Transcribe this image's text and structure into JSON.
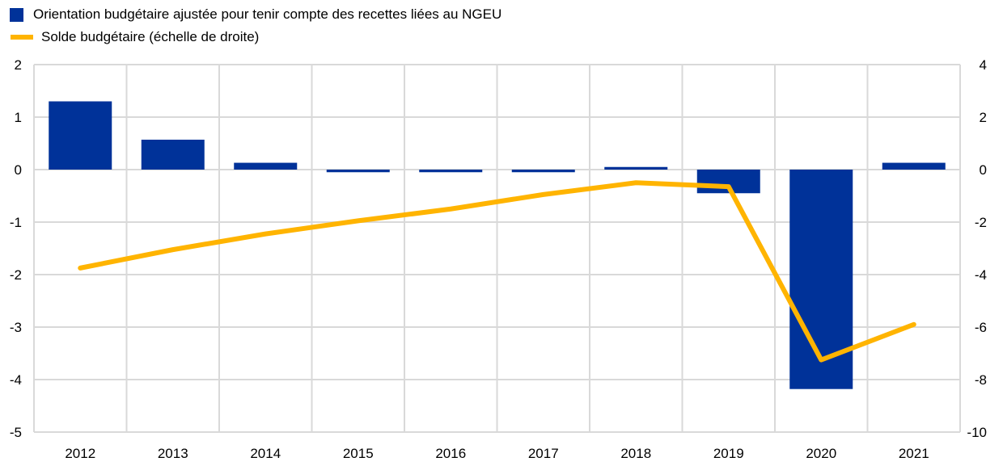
{
  "chart_data": {
    "type": "bar+line",
    "categories": [
      "2012",
      "2013",
      "2014",
      "2015",
      "2016",
      "2017",
      "2018",
      "2019",
      "2020",
      "2021"
    ],
    "series": [
      {
        "name": "Orientation budgétaire ajustée pour tenir compte des recettes liées au NGEU",
        "type": "bar",
        "axis": "left",
        "color": "#003299",
        "values": [
          1.3,
          0.57,
          0.13,
          -0.05,
          -0.05,
          -0.05,
          0.05,
          -0.45,
          -4.18,
          0.13
        ]
      },
      {
        "name": "Solde budgétaire  (échelle de droite)",
        "type": "line",
        "axis": "right",
        "color": "#FFB400",
        "values": [
          -3.75,
          -3.05,
          -2.45,
          -1.95,
          -1.5,
          -0.95,
          -0.5,
          -0.65,
          -7.25,
          -5.9
        ]
      }
    ],
    "left_axis": {
      "ylim": [
        -5,
        2
      ],
      "ticks": [
        "2",
        "1",
        "0",
        "-1",
        "-2",
        "-3",
        "-4",
        "-5"
      ]
    },
    "right_axis": {
      "ylim": [
        -10,
        4
      ],
      "ticks": [
        "4",
        "2",
        "0",
        "-2",
        "-4",
        "-6",
        "-8",
        "-10"
      ]
    },
    "grid": true,
    "legend_position": "top-left"
  }
}
